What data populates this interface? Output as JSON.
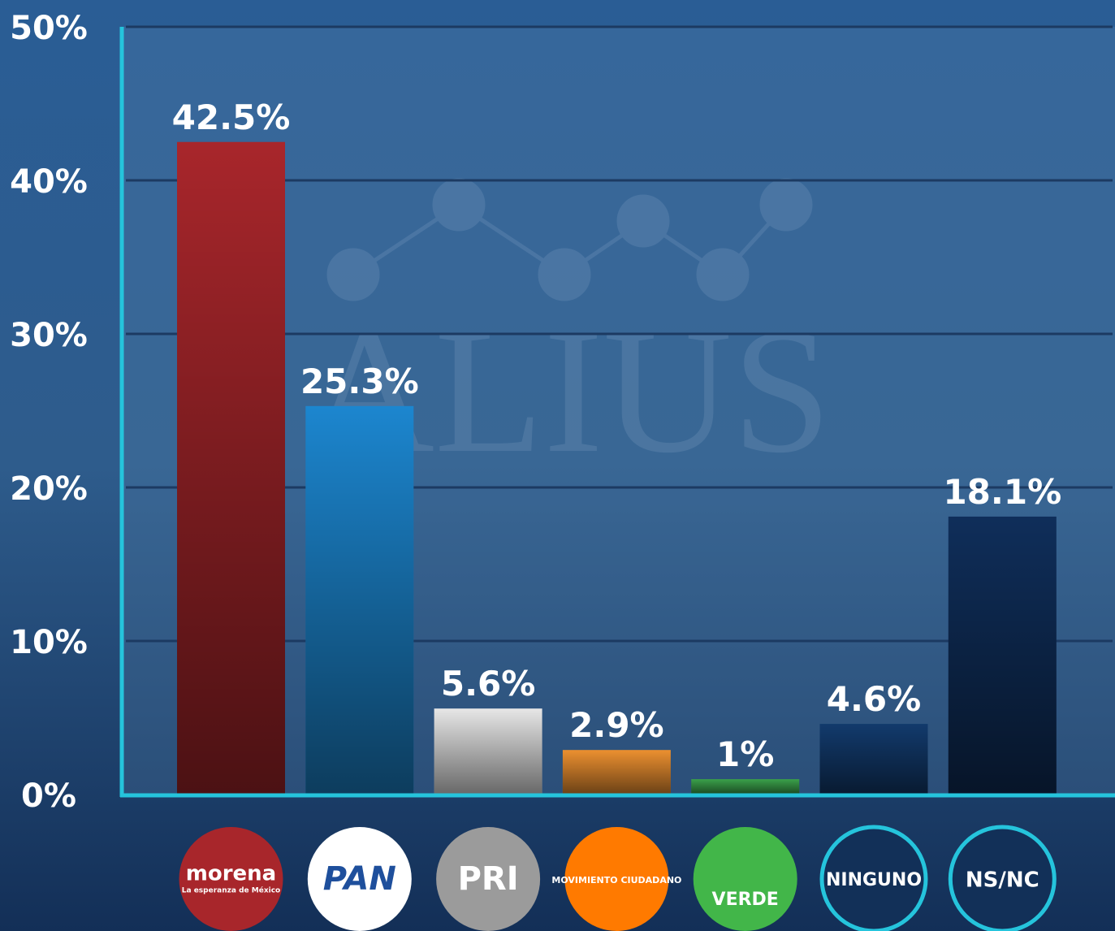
{
  "chart_data": {
    "type": "bar",
    "watermark": "ALIUS",
    "categories": [
      "morena",
      "PAN",
      "PRI",
      "MOVIMIENTO CIUDADANO",
      "VERDE",
      "NINGUNO",
      "NS/NC"
    ],
    "category_taglines": [
      "La esperanza de México",
      null,
      null,
      null,
      null,
      null,
      null
    ],
    "values": [
      42.5,
      25.3,
      5.6,
      2.9,
      1,
      4.6,
      18.1
    ],
    "value_labels": [
      "42.5%",
      "25.3%",
      "5.6%",
      "2.9%",
      "1%",
      "4.6%",
      "18.1%"
    ],
    "colors": [
      "#a8262b",
      "#1c86cf",
      "#e6e6e6",
      "#ec9030",
      "#3aa04a",
      "#123a6c",
      "#0f2e5a"
    ],
    "ylim": [
      0,
      50
    ],
    "yticks": [
      {
        "value": 0,
        "label": "0%"
      },
      {
        "value": 10,
        "label": "10%"
      },
      {
        "value": 20,
        "label": "20%"
      },
      {
        "value": 30,
        "label": "30%"
      },
      {
        "value": 40,
        "label": "40%"
      },
      {
        "value": 50,
        "label": "50%"
      }
    ],
    "grid": true
  }
}
